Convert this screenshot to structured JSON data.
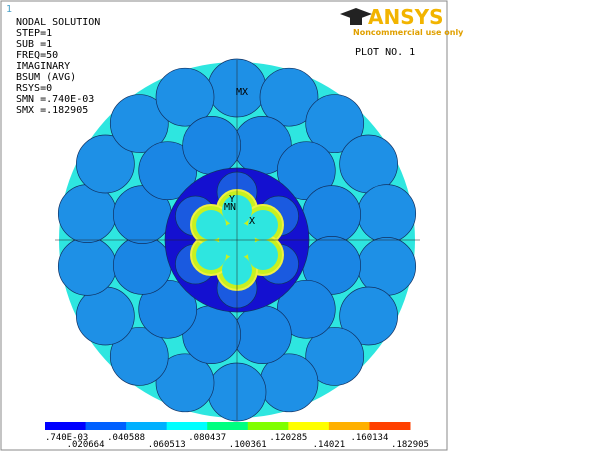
{
  "window_number": "1",
  "info": [
    "NODAL SOLUTION",
    "STEP=1",
    "SUB =1",
    "FREQ=50",
    "IMAGINARY",
    "BSUM     (AVG)",
    "RSYS=0",
    "SMN =.740E-03",
    "SMX =.182905"
  ],
  "logo": {
    "name": "ANSYS",
    "note": "Noncommercial use only"
  },
  "plot_number": "PLOT NO.   1",
  "markers": {
    "max": "MX",
    "min": "MN",
    "y_axis": "Y",
    "x_axis": "X"
  },
  "legend": {
    "labels": [
      ".740E-03",
      ".020664",
      ".040588",
      ".060513",
      ".080437",
      ".100361",
      ".120285",
      ".14021",
      ".160134",
      ".182905"
    ]
  }
}
